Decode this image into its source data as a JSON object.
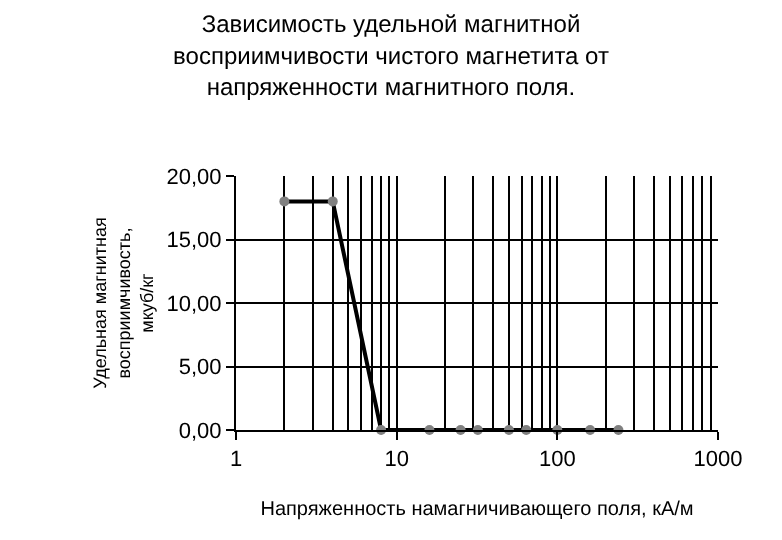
{
  "chart_data": {
    "type": "line",
    "title": "Зависимость удельной магнитной восприимчивости чистого магнетита от напряженности магнитного поля.",
    "xlabel": "Напряженность намагничивающего поля, кА/м",
    "ylabel": "Удельная магнитная восприимчивость, мкуб/кг",
    "x": [
      2,
      4,
      8,
      16,
      25,
      32,
      50,
      64,
      100,
      160,
      240
    ],
    "series": [
      {
        "color": "#000000",
        "values": [
          18,
          18,
          0,
          0,
          0,
          0,
          0,
          0,
          0,
          0,
          0
        ]
      }
    ],
    "log": "x",
    "xlim": [
      1,
      1000
    ],
    "xticks": [
      1,
      10,
      100,
      1000
    ],
    "ylim": [
      0,
      20
    ],
    "yticks": [
      {
        "value": 0,
        "label": "0,00"
      },
      {
        "value": 5,
        "label": "5,00"
      },
      {
        "value": 10,
        "label": "10,00"
      },
      {
        "value": 15,
        "label": "15,00"
      },
      {
        "value": 20,
        "label": "20,00"
      }
    ],
    "grid": true,
    "marker": "circle",
    "line_style": "solid"
  }
}
